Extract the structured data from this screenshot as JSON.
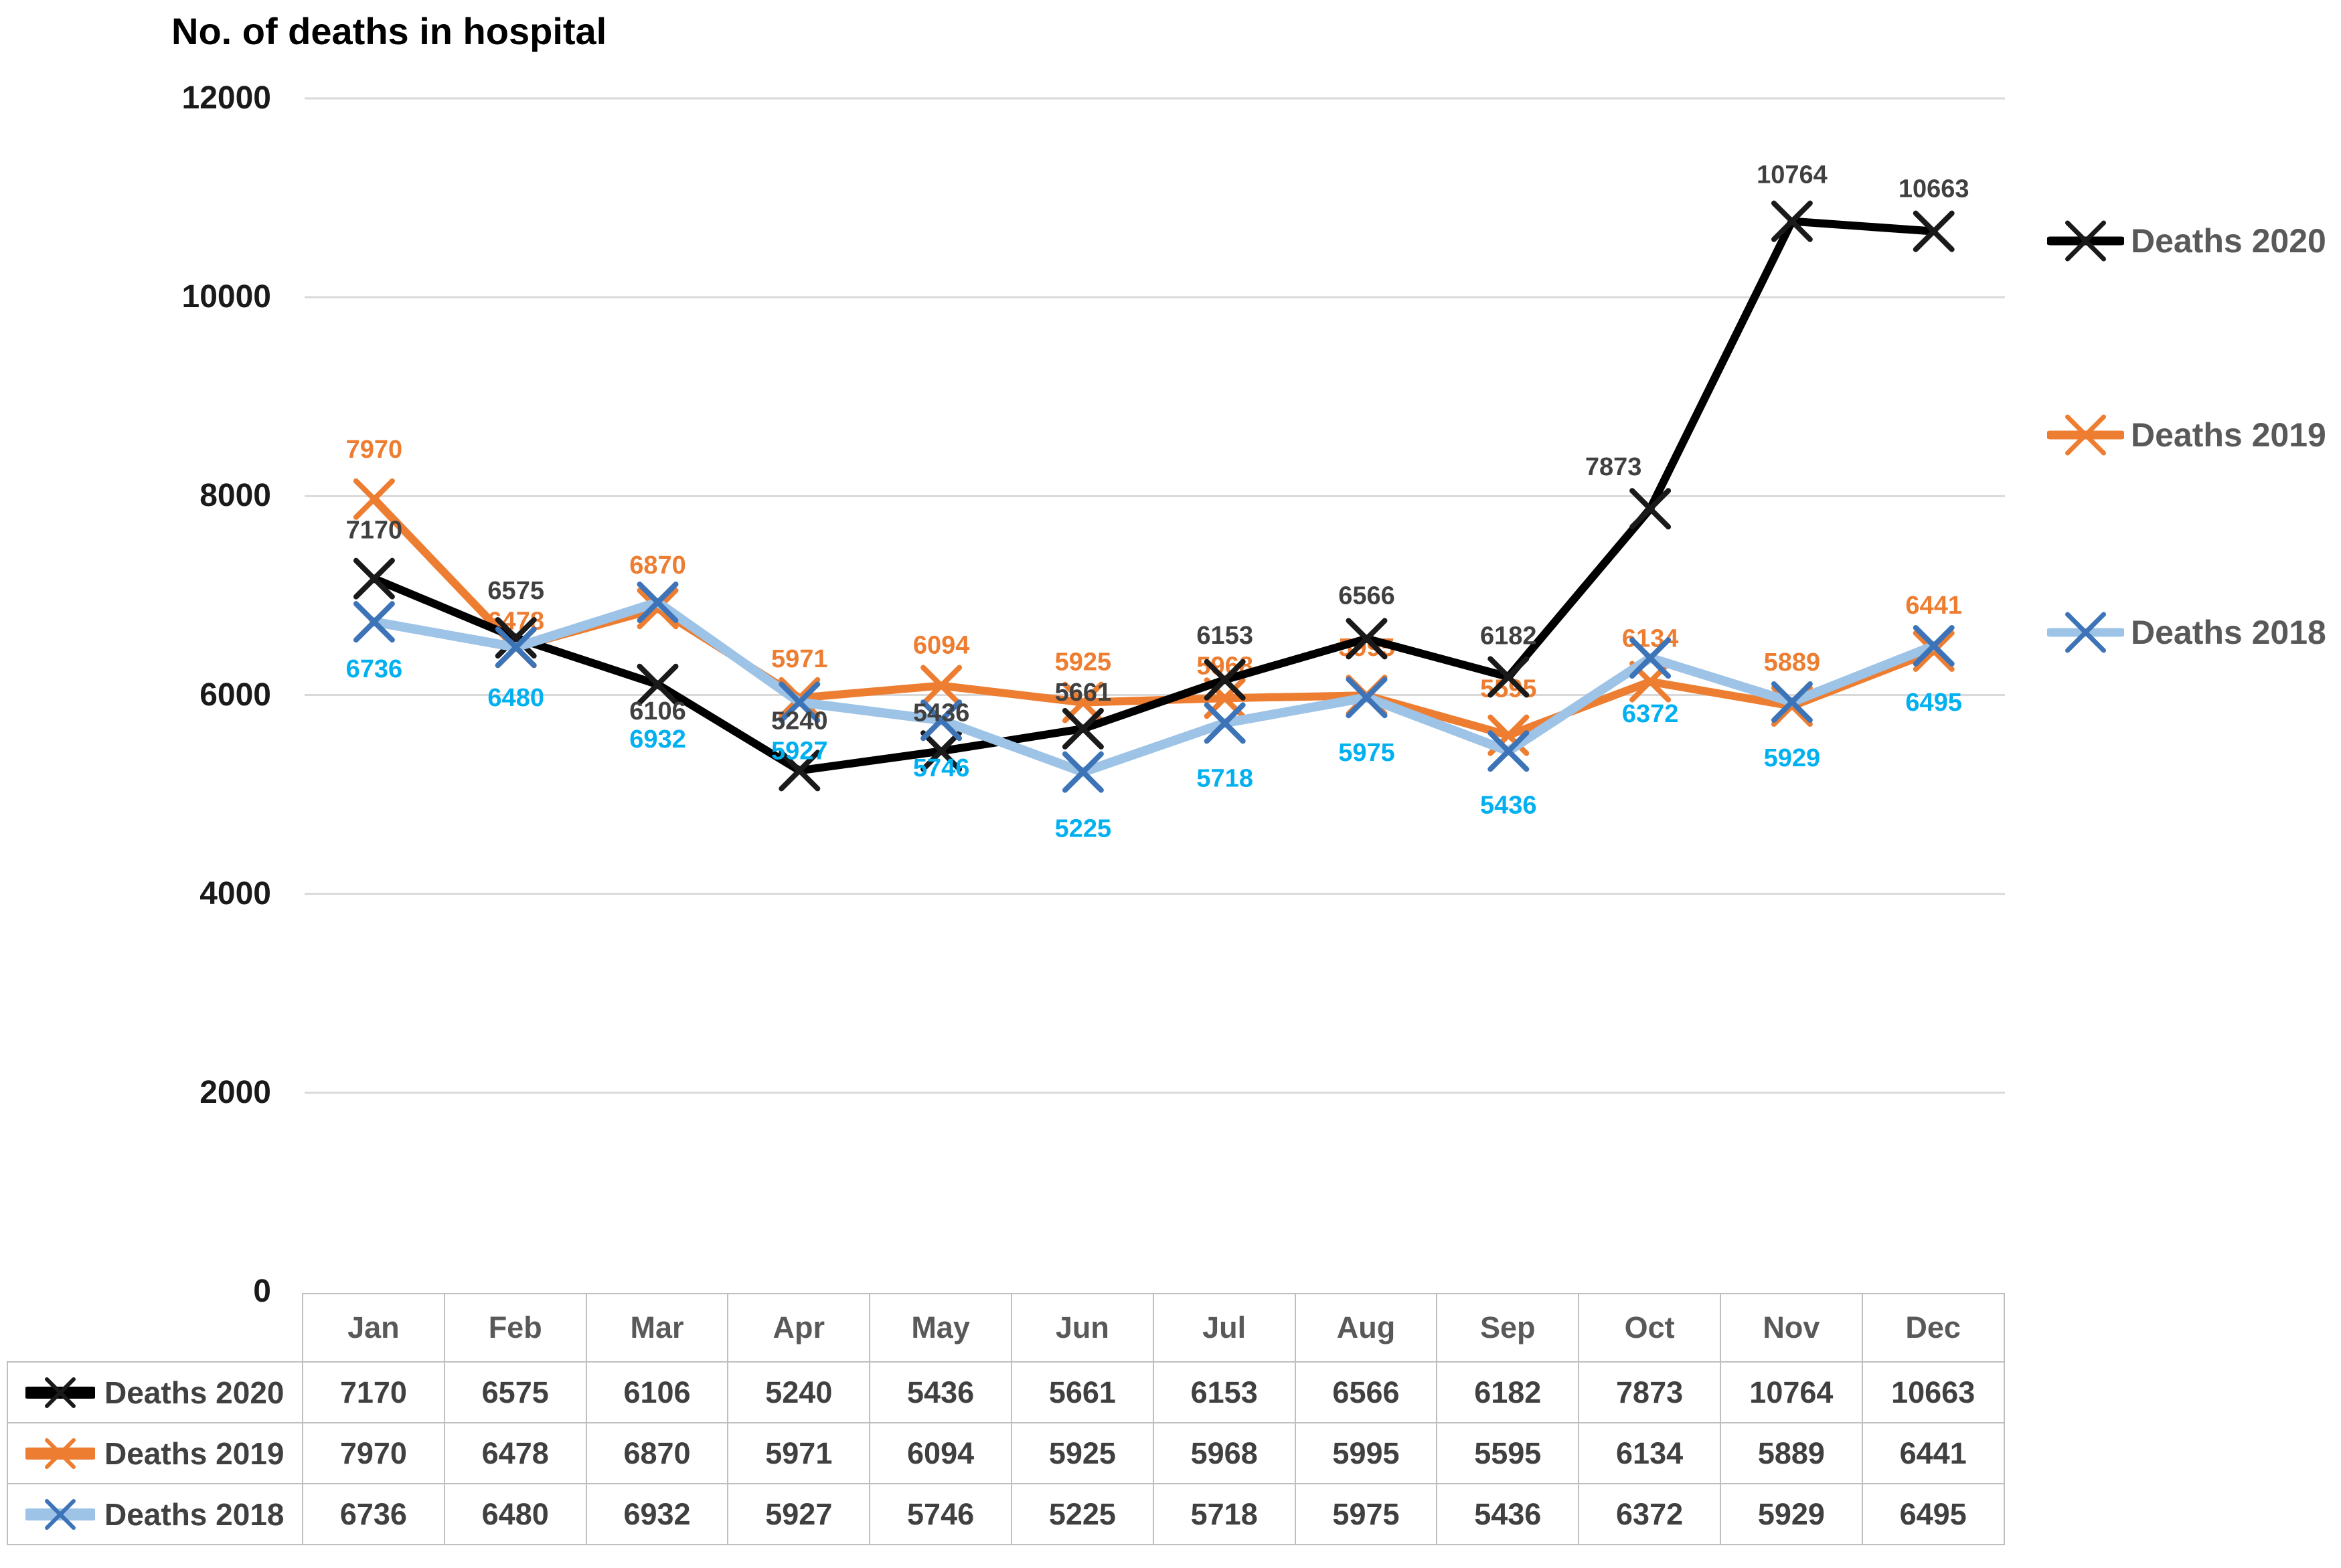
{
  "chart_data": {
    "type": "line",
    "title": "No. of deaths in hospital",
    "categories": [
      "Jan",
      "Feb",
      "Mar",
      "Apr",
      "May",
      "Jun",
      "Jul",
      "Aug",
      "Sep",
      "Oct",
      "Nov",
      "Dec"
    ],
    "series": [
      {
        "name": "Deaths 2020",
        "line_color": "#000000",
        "marker_color": "#1a1a1a",
        "label_color": "#404040",
        "values": [
          7170,
          6575,
          6106,
          5240,
          5436,
          5661,
          6153,
          6566,
          6182,
          7873,
          10764,
          10663
        ]
      },
      {
        "name": "Deaths 2019",
        "line_color": "#ED7D31",
        "marker_color": "#ED7D31",
        "label_color": "#ED7D31",
        "values": [
          7970,
          6478,
          6870,
          5971,
          6094,
          5925,
          5968,
          5995,
          5595,
          6134,
          5889,
          6441
        ]
      },
      {
        "name": "Deaths 2018",
        "line_color": "#9DC3E6",
        "marker_color": "#3D74B8",
        "label_color": "#00B0F0",
        "values": [
          6736,
          6480,
          6932,
          5927,
          5746,
          5225,
          5718,
          5975,
          5436,
          6372,
          5929,
          6495
        ]
      }
    ],
    "y_ticks": [
      0,
      2000,
      4000,
      6000,
      8000,
      10000,
      12000
    ],
    "ylim": [
      0,
      12000
    ],
    "grid": true,
    "gridline_color": "#d9d9d9",
    "legend_position": "right",
    "legend_text_color": "#595959",
    "data_table": true,
    "data_labels": true
  }
}
